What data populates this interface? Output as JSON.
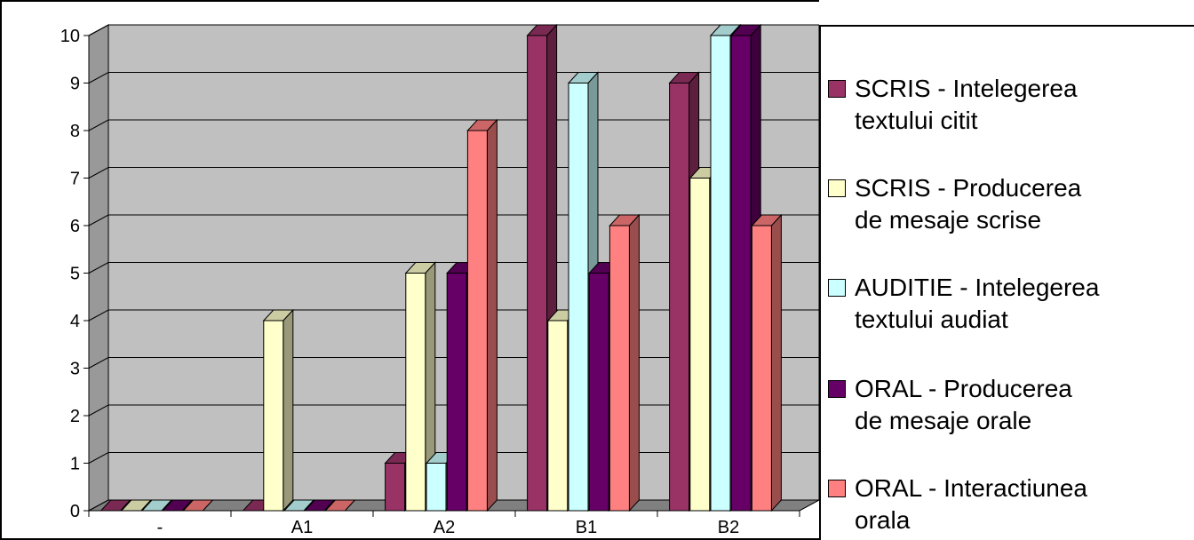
{
  "chart_data": {
    "type": "bar",
    "categories": [
      "-",
      "A1",
      "A2",
      "B1",
      "B2"
    ],
    "series": [
      {
        "name": "SCRIS - Intelegerea textului citit",
        "values": [
          0,
          0,
          1,
          10,
          9
        ],
        "color": "#993366"
      },
      {
        "name": "SCRIS - Producerea de mesaje scrise",
        "values": [
          0,
          4,
          5,
          4,
          7
        ],
        "color": "#FFFFCC"
      },
      {
        "name": "AUDITIE - Intelegerea textului audiat",
        "values": [
          0,
          0,
          1,
          9,
          10
        ],
        "color": "#CCFFFF"
      },
      {
        "name": "ORAL - Producerea de mesaje orale",
        "values": [
          0,
          0,
          5,
          5,
          10
        ],
        "color": "#660066"
      },
      {
        "name": "ORAL - Interactiunea orala",
        "values": [
          0,
          0,
          8,
          6,
          6
        ],
        "color": "#FF8080"
      }
    ],
    "yticks": [
      0,
      1,
      2,
      3,
      4,
      5,
      6,
      7,
      8,
      9,
      10
    ],
    "ylim": [
      0,
      10
    ],
    "grid": true,
    "legend_position": "right",
    "plot_background": "#C0C0C0",
    "chart_style": "3d-clustered-column"
  },
  "legend": {
    "items": [
      {
        "line1": "SCRIS - Intelegerea",
        "line2": "textului citit"
      },
      {
        "line1": "SCRIS - Producerea",
        "line2": "de mesaje scrise"
      },
      {
        "line1": "AUDITIE - Intelegerea",
        "line2": "textului audiat"
      },
      {
        "line1": "ORAL - Producerea",
        "line2": "de mesaje orale"
      },
      {
        "line1": "ORAL - Interactiunea",
        "line2": "orala"
      }
    ]
  }
}
